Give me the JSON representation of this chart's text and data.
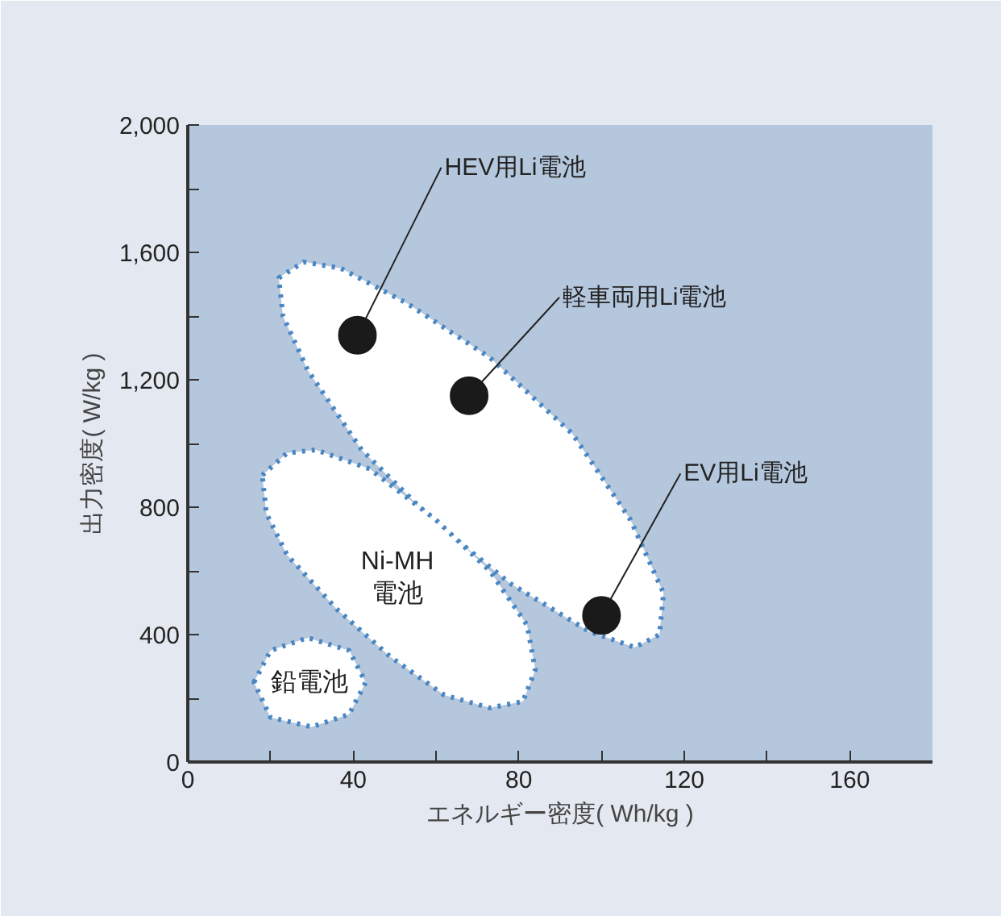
{
  "chart_data": {
    "type": "scatter",
    "xlabel": "エネルギー密度( Wh/kg )",
    "ylabel": "出力密度( W/kg )",
    "xlim": [
      0,
      180
    ],
    "ylim": [
      0,
      2000
    ],
    "xticks": [
      0,
      {
        "value": 20,
        "label": null
      },
      40,
      {
        "value": 60,
        "label": null
      },
      80,
      {
        "value": 100,
        "label": null
      },
      120,
      {
        "value": 140,
        "label": null
      },
      160
    ],
    "yticks": [
      0,
      {
        "value": 200,
        "label": null
      },
      400,
      {
        "value": 600,
        "label": null
      },
      800,
      {
        "value": 1000,
        "label": null
      },
      {
        "value": 1200,
        "label": "1,200"
      },
      {
        "value": 1400,
        "label": null
      },
      {
        "value": 1600,
        "label": "1,600"
      },
      {
        "value": 1800,
        "label": null
      },
      {
        "value": 2000,
        "label": "2,000"
      }
    ],
    "grid": false,
    "series": [
      {
        "type": "area",
        "color": "#ffffff",
        "line_style": "dotted",
        "x": [
          22,
          28,
          37,
          53,
          73,
          93,
          107,
          115,
          114,
          108,
          97,
          78,
          60,
          42,
          29,
          23
        ],
        "values": [
          1520,
          1570,
          1550,
          1440,
          1270,
          1030,
          760,
          530,
          400,
          360,
          410,
          560,
          750,
          980,
          1230,
          1400
        ]
      },
      {
        "type": "area",
        "name": "Ni-MH\n電池",
        "color": "#ffffff",
        "line_style": "dotted",
        "x": [
          18,
          24,
          31,
          44,
          60,
          73,
          82,
          84,
          81,
          73,
          62,
          49,
          36,
          24,
          19
        ],
        "values": [
          900,
          970,
          980,
          920,
          760,
          600,
          430,
          290,
          190,
          170,
          210,
          330,
          480,
          650,
          780
        ]
      },
      {
        "type": "area",
        "name": "鉛電池",
        "color": "#ffffff",
        "line_style": "dotted",
        "x": [
          16,
          20,
          29,
          39,
          43,
          39,
          30,
          20
        ],
        "values": [
          250,
          350,
          390,
          350,
          250,
          150,
          110,
          140
        ]
      },
      {
        "marker": "circle",
        "color": "#1a1a1a",
        "x": [
          41,
          68,
          100
        ],
        "values": [
          1340,
          1150,
          460
        ]
      }
    ],
    "annotations": [
      {
        "text": "HEV用Li電池",
        "x": 41,
        "y": 1340
      },
      {
        "text": "軽車両用Li電池",
        "x": 68,
        "y": 1150
      },
      {
        "text": "EV用Li電池",
        "x": 100,
        "y": 460
      }
    ]
  }
}
